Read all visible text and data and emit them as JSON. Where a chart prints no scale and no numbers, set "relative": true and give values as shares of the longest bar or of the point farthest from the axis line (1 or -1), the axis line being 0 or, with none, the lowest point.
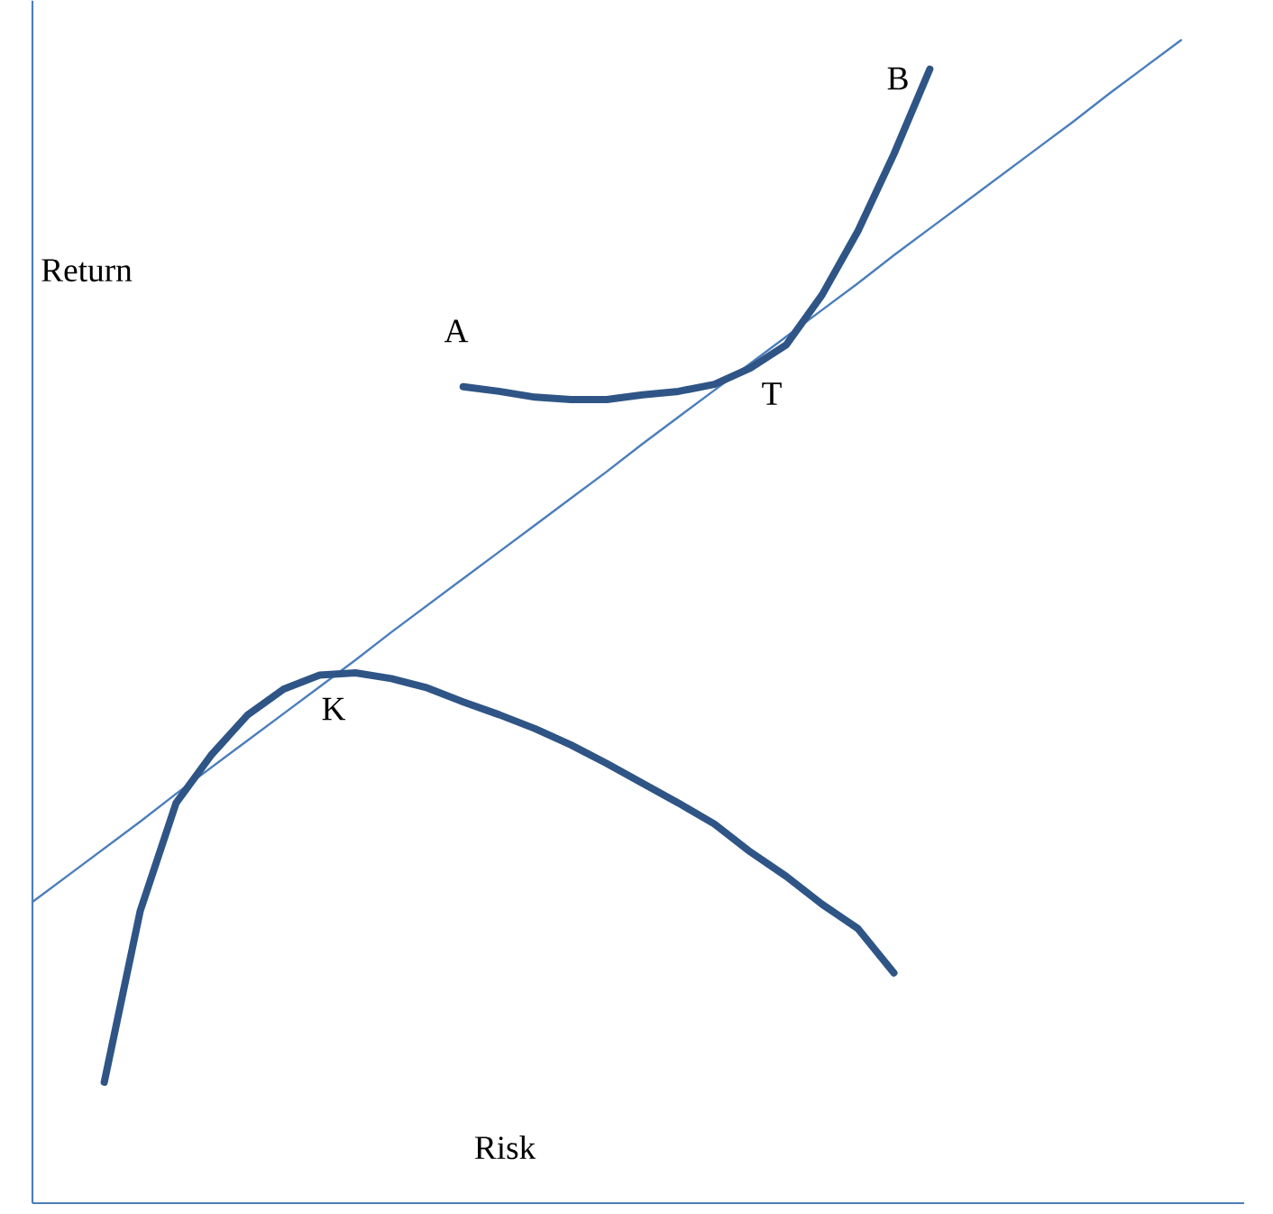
{
  "chart_data": {
    "type": "line",
    "relative": true,
    "xlabel": "Risk",
    "ylabel": "Return",
    "tick_labels": false,
    "marker": "none",
    "line_style": "solid",
    "categories": [
      null,
      null,
      null,
      null,
      null,
      null,
      null,
      null,
      null,
      null,
      null,
      null,
      null,
      null,
      null,
      null,
      null,
      null,
      null,
      null,
      null,
      null,
      null,
      null,
      null,
      null,
      null,
      null,
      null,
      null,
      null,
      null,
      null
    ],
    "series": [
      {
        "color": "#4a7ebb",
        "values": [
          0.259,
          0.282,
          0.305,
          0.328,
          0.352,
          0.375,
          0.398,
          0.421,
          0.444,
          0.467,
          0.491,
          0.514,
          0.537,
          0.56,
          0.583,
          0.606,
          0.629,
          0.653,
          0.676,
          0.699,
          0.722,
          0.745,
          0.768,
          0.791,
          0.815,
          0.838,
          0.861,
          0.884,
          0.907,
          0.93,
          0.954,
          0.977,
          1.0
        ]
      },
      {
        "color": "#2f5586",
        "values": [
          null,
          null,
          null,
          null,
          null,
          null,
          null,
          null,
          null,
          null,
          null,
          null,
          0.702,
          0.698,
          0.693,
          0.691,
          0.691,
          0.695,
          0.698,
          0.704,
          0.718,
          0.738,
          0.781,
          0.836,
          0.902,
          0.975,
          null,
          null,
          null,
          null,
          null,
          null,
          null
        ]
      },
      {
        "color": "#2f5586",
        "values": [
          null,
          null,
          0.104,
          0.251,
          0.344,
          0.386,
          0.42,
          0.442,
          0.454,
          0.456,
          0.451,
          0.443,
          0.431,
          0.42,
          0.408,
          0.394,
          0.378,
          0.361,
          0.344,
          0.326,
          0.302,
          0.281,
          0.257,
          0.236,
          0.198,
          null,
          null,
          null,
          null,
          null,
          null,
          null,
          null
        ]
      }
    ],
    "annotations": [
      "A",
      "B",
      "T",
      "K"
    ]
  }
}
